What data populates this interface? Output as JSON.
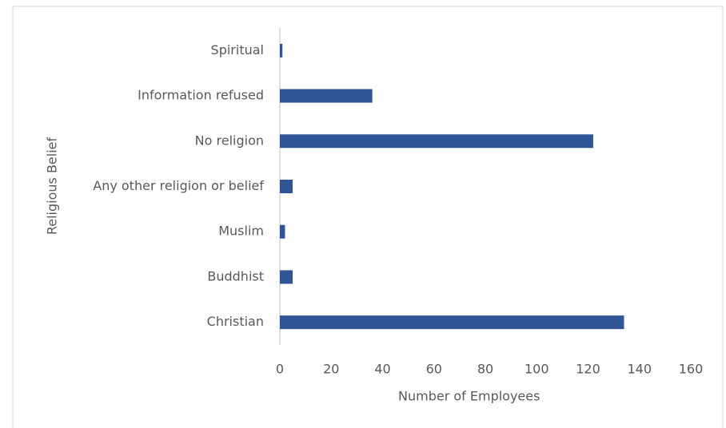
{
  "chart_data": {
    "type": "bar",
    "orientation": "horizontal",
    "x_label": "Number of Employees",
    "y_label": "Religious Belief",
    "categories": [
      "Christian",
      "Buddhist",
      "Muslim",
      "Any other religion or belief",
      "No religion",
      "Information refused",
      "Spiritual"
    ],
    "values": [
      134,
      5,
      2,
      5,
      122,
      36,
      1
    ],
    "color": "#2f5597",
    "xlim": [
      0,
      160
    ],
    "xticks": [
      0,
      20,
      40,
      60,
      80,
      100,
      120,
      140,
      160
    ],
    "grid": false
  }
}
